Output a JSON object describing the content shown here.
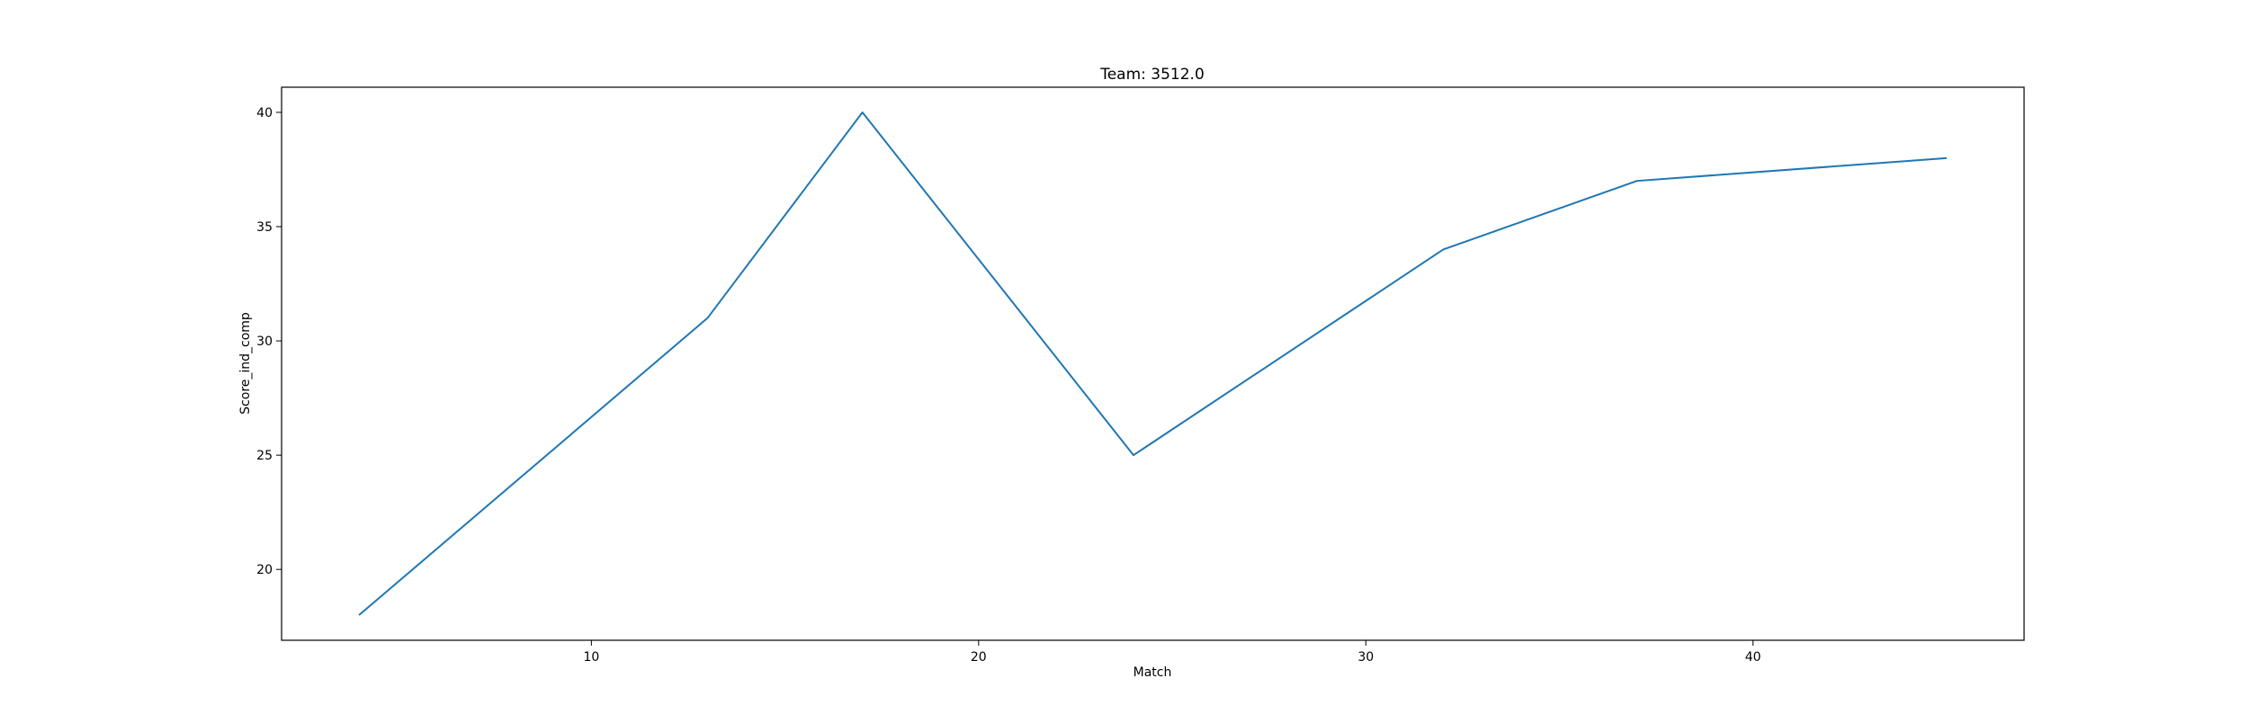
{
  "chart_data": {
    "type": "line",
    "title": "Team: 3512.0",
    "xlabel": "Match",
    "ylabel": "Score_ind_comp",
    "xlim": [
      2,
      47
    ],
    "ylim": [
      16.9,
      41.1
    ],
    "xticks": [
      10,
      20,
      30,
      40
    ],
    "yticks": [
      20,
      25,
      30,
      35,
      40
    ],
    "grid": false,
    "series": [
      {
        "x": [
          4,
          13,
          17,
          24,
          32,
          37,
          45
        ],
        "y": [
          18,
          31,
          40,
          25,
          34,
          37,
          38
        ],
        "color": "#1f77b4"
      }
    ]
  }
}
